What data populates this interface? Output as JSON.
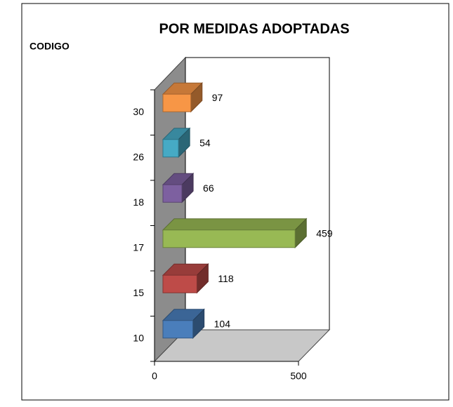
{
  "chart_data": {
    "type": "bar3d_horizontal",
    "title": "POR MEDIDAS ADOPTADAS",
    "y_label": "CODIGO",
    "categories": [
      "10",
      "15",
      "17",
      "18",
      "26",
      "30"
    ],
    "values": [
      104,
      118,
      459,
      66,
      54,
      97
    ],
    "colors": [
      "#4a7ebb",
      "#be4b48",
      "#98b954",
      "#7d60a0",
      "#46aac5",
      "#f79646"
    ],
    "xlim": [
      0,
      500
    ],
    "xticks": [
      0,
      500
    ]
  }
}
